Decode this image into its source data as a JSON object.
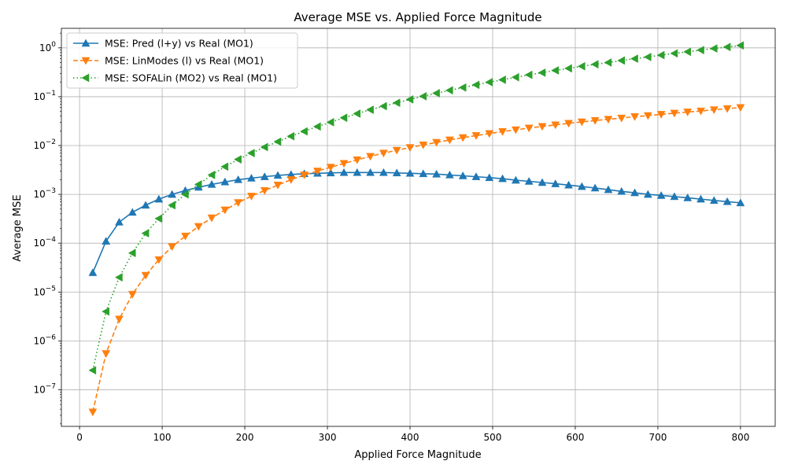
{
  "chart_data": {
    "type": "line",
    "title": "Average MSE vs. Applied Force Magnitude",
    "xlabel": "Applied Force Magnitude",
    "ylabel": "Average MSE",
    "xlim": [
      -22,
      842
    ],
    "ylim_log10": [
      -7.75,
      0.4
    ],
    "yscale": "log",
    "grid": true,
    "legend_position": "top-left",
    "x_ticks": [
      0,
      100,
      200,
      300,
      400,
      500,
      600,
      700,
      800
    ],
    "x_tick_labels": [
      "0",
      "100",
      "200",
      "300",
      "400",
      "500",
      "600",
      "700",
      "800"
    ],
    "y_ticks_exp": [
      -7,
      -6,
      -5,
      -4,
      -3,
      -2,
      -1,
      0
    ],
    "y_tick_labels": [
      {
        "base": "10",
        "exp": "−7"
      },
      {
        "base": "10",
        "exp": "−6"
      },
      {
        "base": "10",
        "exp": "−5"
      },
      {
        "base": "10",
        "exp": "−4"
      },
      {
        "base": "10",
        "exp": "−3"
      },
      {
        "base": "10",
        "exp": "−2"
      },
      {
        "base": "10",
        "exp": "−1"
      },
      {
        "base": "10",
        "exp": "0"
      }
    ],
    "x": [
      16,
      32,
      48,
      64,
      80,
      96,
      112,
      128,
      144,
      160,
      176,
      192,
      208,
      224,
      240,
      256,
      272,
      288,
      304,
      320,
      336,
      352,
      368,
      384,
      400,
      416,
      432,
      448,
      464,
      480,
      496,
      512,
      528,
      544,
      560,
      576,
      592,
      608,
      624,
      640,
      656,
      672,
      688,
      704,
      720,
      736,
      752,
      768,
      784,
      800
    ],
    "series": [
      {
        "name": "MSE: Pred (l+y) vs Real (MO1)",
        "color": "#1f77b4",
        "line_style": "solid",
        "marker": "triangle-up",
        "values": [
          2.5e-05,
          0.00011,
          0.00027,
          0.00043,
          0.0006,
          0.0008,
          0.001,
          0.0012,
          0.0014,
          0.0016,
          0.0018,
          0.002,
          0.00215,
          0.0023,
          0.00245,
          0.00255,
          0.00265,
          0.0027,
          0.00275,
          0.0028,
          0.0028,
          0.0028,
          0.0028,
          0.00275,
          0.0027,
          0.00265,
          0.0026,
          0.0025,
          0.0024,
          0.0023,
          0.0022,
          0.0021,
          0.00195,
          0.00185,
          0.00175,
          0.00165,
          0.00155,
          0.00145,
          0.00135,
          0.00125,
          0.00115,
          0.00108,
          0.001,
          0.00095,
          0.0009,
          0.00085,
          0.0008,
          0.00075,
          0.00071,
          0.00067
        ]
      },
      {
        "name": "MSE: LinModes (l) vs Real (MO1)",
        "color": "#ff7f0e",
        "line_style": "dashed",
        "marker": "triangle-down",
        "values": [
          3.5e-08,
          5.5e-07,
          2.8e-06,
          9e-06,
          2.2e-05,
          4.6e-05,
          8.5e-05,
          0.00014,
          0.00022,
          0.00033,
          0.00048,
          0.00068,
          0.00092,
          0.0012,
          0.00155,
          0.002,
          0.0025,
          0.003,
          0.0036,
          0.0043,
          0.0051,
          0.006,
          0.007,
          0.008,
          0.0091,
          0.0103,
          0.0116,
          0.013,
          0.0145,
          0.016,
          0.0176,
          0.0193,
          0.021,
          0.0228,
          0.0246,
          0.0265,
          0.0285,
          0.0305,
          0.0325,
          0.0345,
          0.0365,
          0.039,
          0.041,
          0.0435,
          0.046,
          0.0485,
          0.051,
          0.054,
          0.057,
          0.06
        ]
      },
      {
        "name": "MSE: SOFALin (MO2) vs Real (MO1)",
        "color": "#2ca02c",
        "line_style": "dotted",
        "marker": "triangle-left",
        "values": [
          2.5e-07,
          4e-06,
          2e-05,
          6.3e-05,
          0.00016,
          0.00032,
          0.0006,
          0.001,
          0.0016,
          0.0025,
          0.0037,
          0.0052,
          0.007,
          0.0093,
          0.012,
          0.0155,
          0.0195,
          0.0245,
          0.03,
          0.037,
          0.045,
          0.054,
          0.064,
          0.075,
          0.088,
          0.102,
          0.118,
          0.135,
          0.154,
          0.175,
          0.198,
          0.222,
          0.25,
          0.28,
          0.31,
          0.345,
          0.38,
          0.42,
          0.46,
          0.5,
          0.55,
          0.6,
          0.65,
          0.71,
          0.77,
          0.83,
          0.9,
          0.97,
          1.04,
          1.12
        ]
      }
    ]
  }
}
